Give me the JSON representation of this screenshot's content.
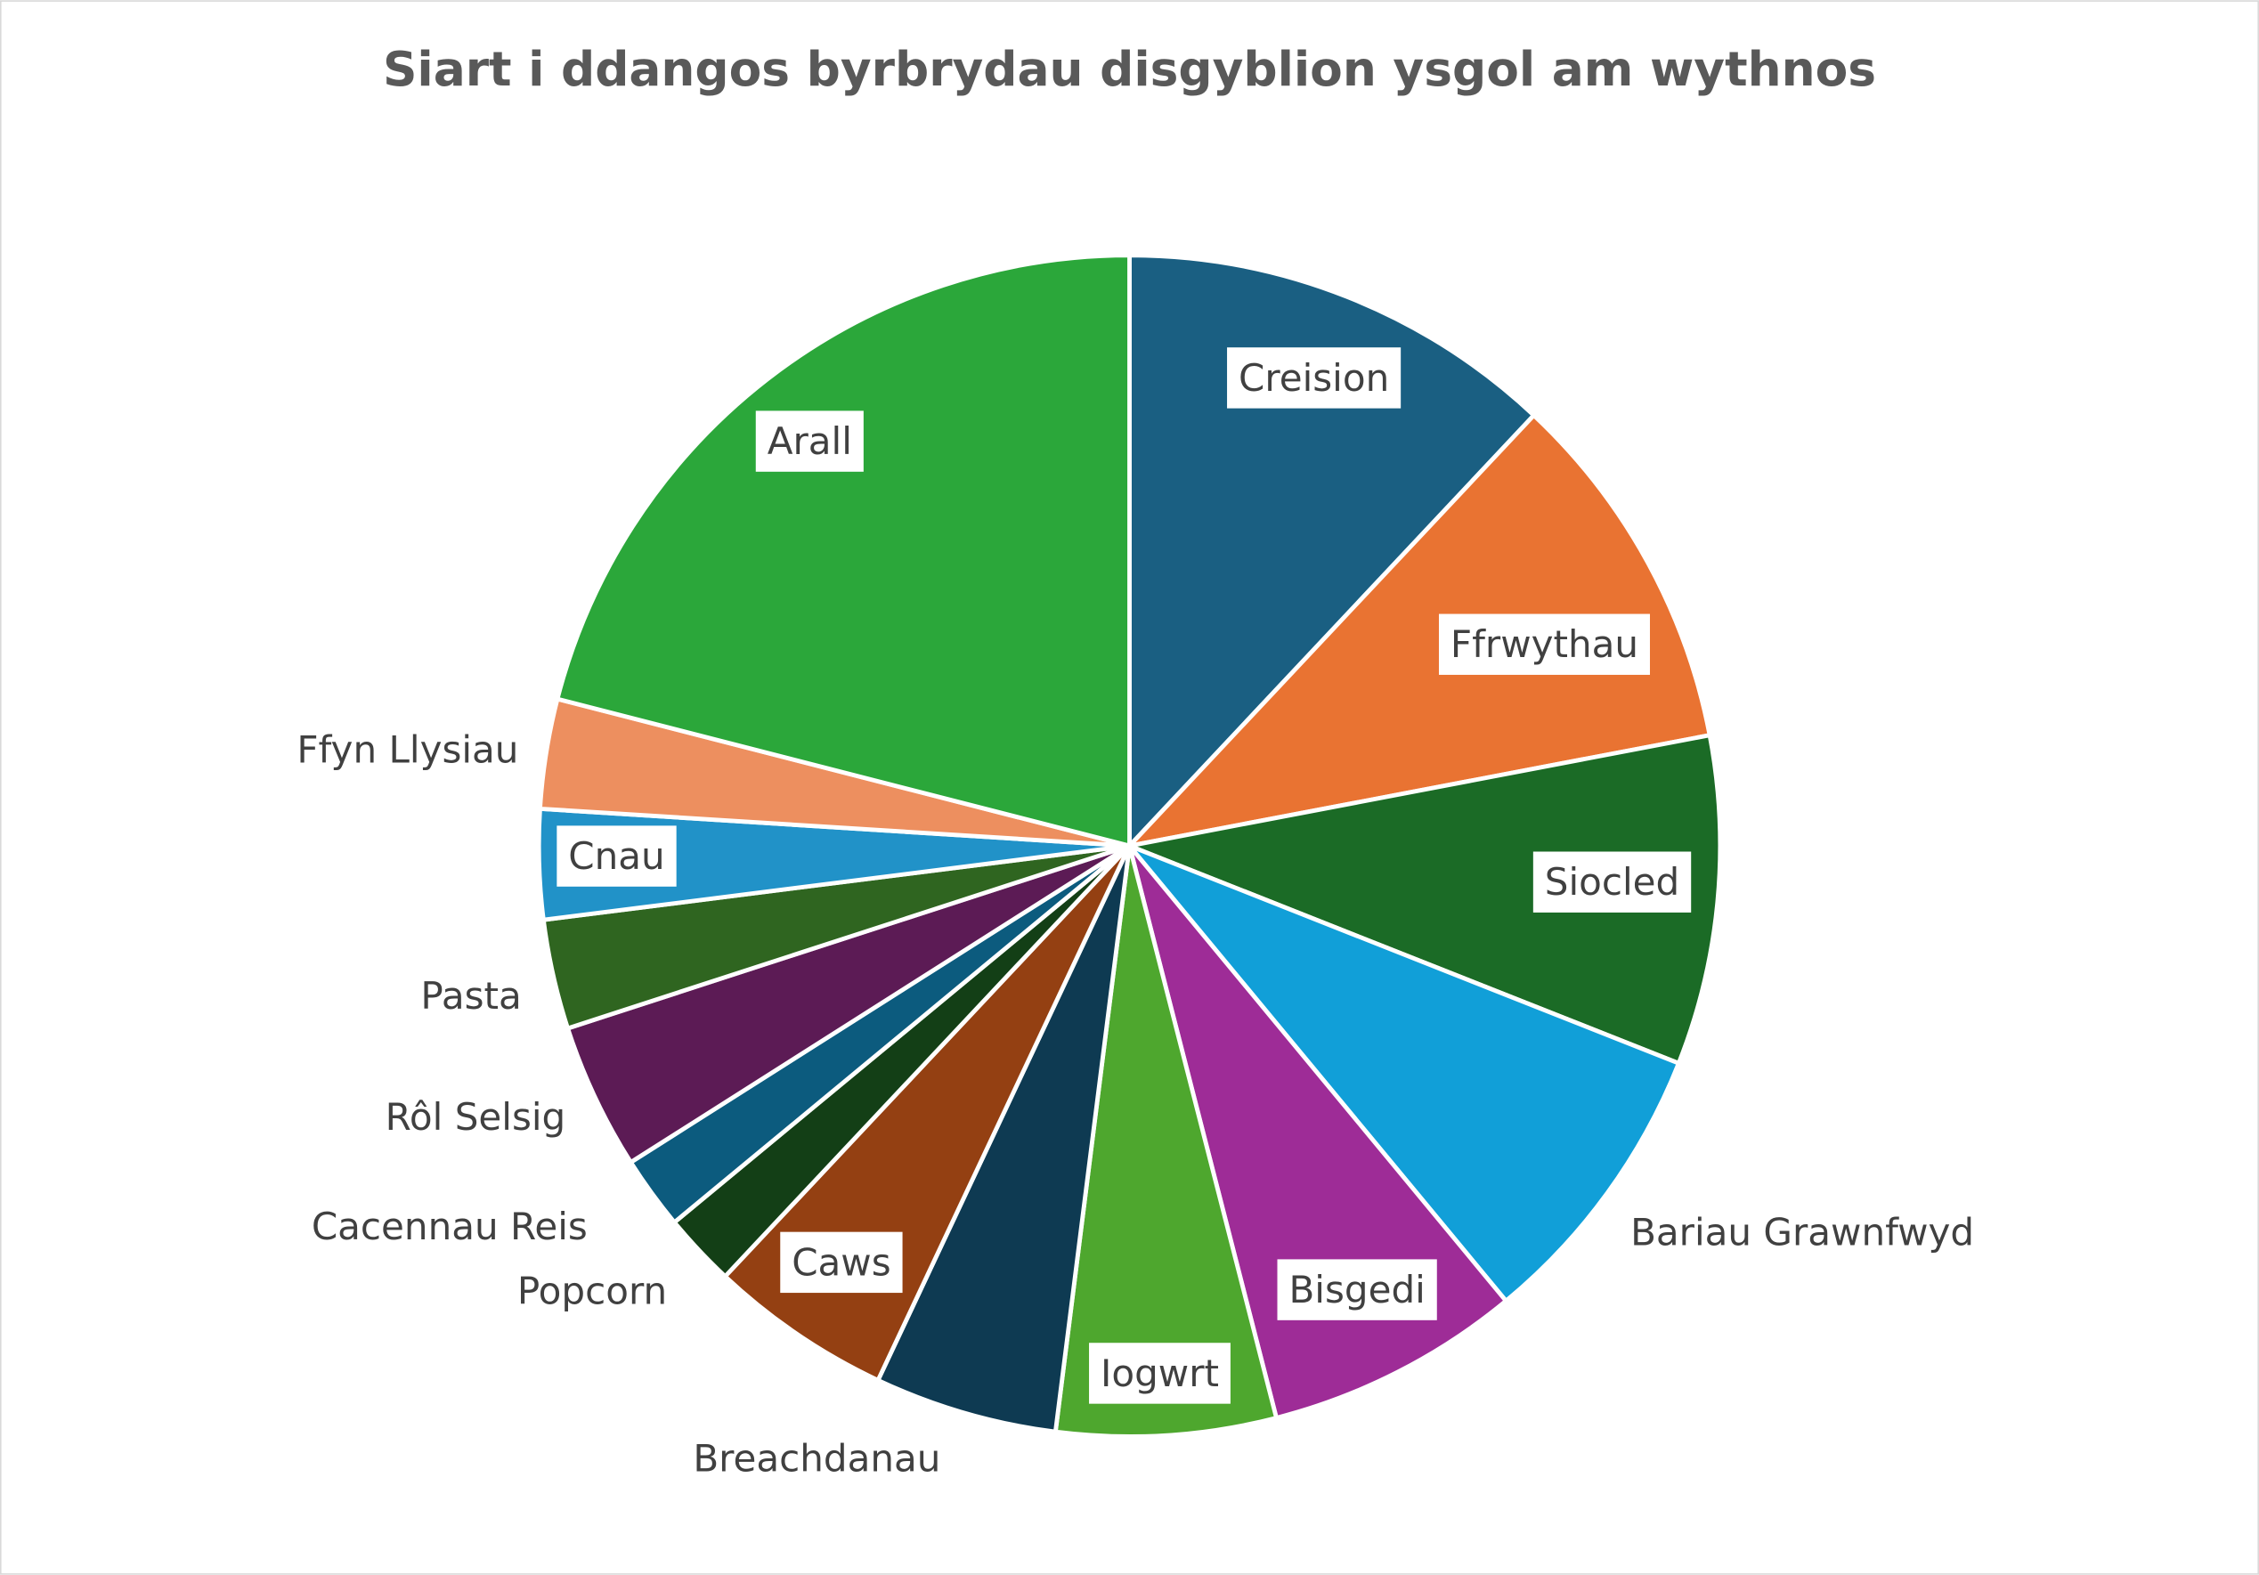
{
  "chart_data": {
    "type": "pie",
    "title": "Siart i ddangos byrbrydau disgyblion ysgol am wythnos",
    "categories": [
      "Creision",
      "Ffrwythau",
      "Siocled",
      "Bariau Grawnfwyd",
      "Bisgedi",
      "Iogwrt",
      "Breachdanau",
      "Caws",
      "Popcorn",
      "Cacennau Reis",
      "Rôl Selsig",
      "Pasta",
      "Cnau",
      "Ffyn Llysiau",
      "Arall"
    ],
    "values": [
      12,
      10,
      9,
      8,
      7,
      6,
      5,
      5,
      2,
      2,
      4,
      3,
      3,
      3,
      21
    ],
    "colors": [
      "#1a5f82",
      "#e97332",
      "#1b6b26",
      "#119fd8",
      "#9e2c97",
      "#4ea72e",
      "#0e3a52",
      "#944012",
      "#133f16",
      "#0c5b7e",
      "#5c1b55",
      "#2f6520",
      "#2192c8",
      "#ed8f5f",
      "#2ba73a"
    ]
  }
}
